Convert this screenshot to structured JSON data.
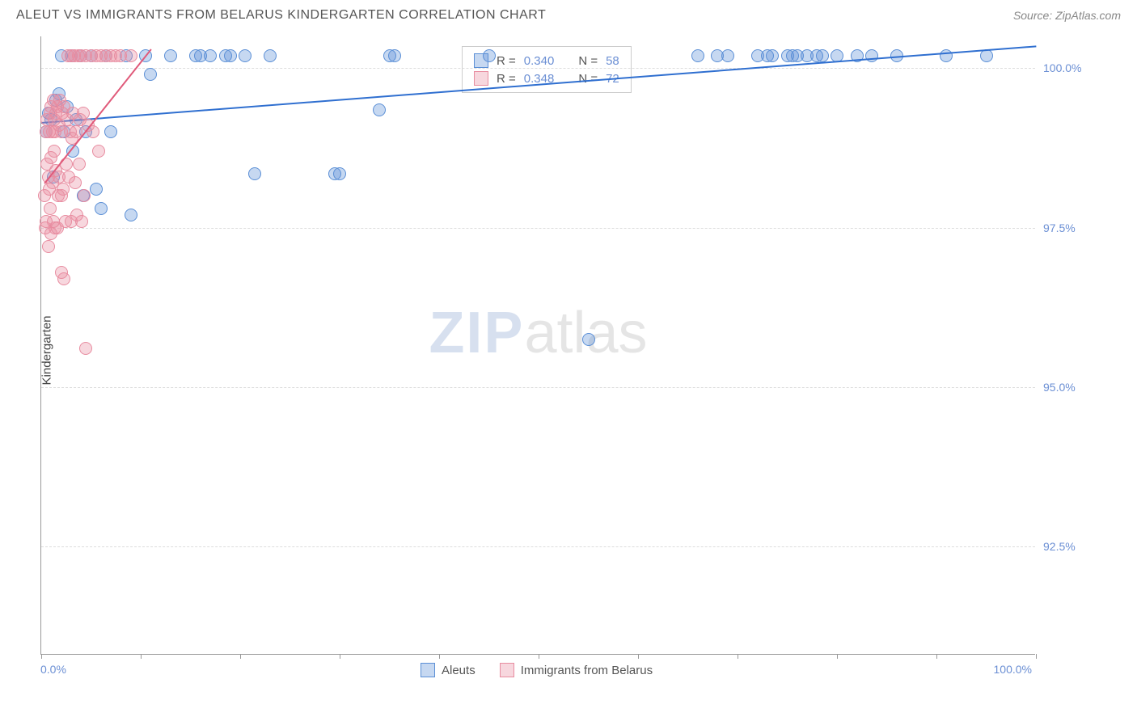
{
  "header": {
    "title": "ALEUT VS IMMIGRANTS FROM BELARUS KINDERGARTEN CORRELATION CHART",
    "source": "Source: ZipAtlas.com"
  },
  "watermark": {
    "zip": "ZIP",
    "atlas": "atlas"
  },
  "chart": {
    "type": "scatter",
    "background_color": "#ffffff",
    "grid_color": "#dddddd",
    "axis_color": "#999999",
    "label_color": "#6b8fd4",
    "y_axis_title": "Kindergarten",
    "xlim": [
      0,
      100
    ],
    "ylim": [
      90.8,
      100.5
    ],
    "y_ticks": [
      92.5,
      95.0,
      97.5,
      100.0
    ],
    "y_tick_labels": [
      "92.5%",
      "95.0%",
      "97.5%",
      "100.0%"
    ],
    "x_ticks": [
      0,
      10,
      20,
      30,
      40,
      50,
      60,
      70,
      80,
      90,
      100
    ],
    "x_label_min": "0.0%",
    "x_label_max": "100.0%",
    "marker_radius": 8,
    "marker_opacity": 0.5,
    "series": [
      {
        "name": "Aleuts",
        "color": "#5b8fd6",
        "fill": "rgba(91,143,214,0.35)",
        "stroke": "#5b8fd6",
        "R": "0.340",
        "N": "58",
        "trend": {
          "x1": 0,
          "y1": 99.15,
          "x2": 100,
          "y2": 100.35,
          "color": "#2f6fd0",
          "width": 2
        },
        "points": [
          [
            0.5,
            99.0
          ],
          [
            0.7,
            99.3
          ],
          [
            1.0,
            99.2
          ],
          [
            1.2,
            98.3
          ],
          [
            1.5,
            99.5
          ],
          [
            1.8,
            99.6
          ],
          [
            2.0,
            100.2
          ],
          [
            2.3,
            99.0
          ],
          [
            2.6,
            99.4
          ],
          [
            3.0,
            100.2
          ],
          [
            3.2,
            98.7
          ],
          [
            3.5,
            99.2
          ],
          [
            4.0,
            100.2
          ],
          [
            4.2,
            98.0
          ],
          [
            4.5,
            99.0
          ],
          [
            5.0,
            100.2
          ],
          [
            5.5,
            98.1
          ],
          [
            6.0,
            97.8
          ],
          [
            6.5,
            100.2
          ],
          [
            7.0,
            99.0
          ],
          [
            8.5,
            100.2
          ],
          [
            9.0,
            97.7
          ],
          [
            10.5,
            100.2
          ],
          [
            11.0,
            99.9
          ],
          [
            13.0,
            100.2
          ],
          [
            15.5,
            100.2
          ],
          [
            16.0,
            100.2
          ],
          [
            17.0,
            100.2
          ],
          [
            18.5,
            100.2
          ],
          [
            19.0,
            100.2
          ],
          [
            20.5,
            100.2
          ],
          [
            21.5,
            98.35
          ],
          [
            23.0,
            100.2
          ],
          [
            29.5,
            98.35
          ],
          [
            30.0,
            98.35
          ],
          [
            34.0,
            99.35
          ],
          [
            35.0,
            100.2
          ],
          [
            35.5,
            100.2
          ],
          [
            45.0,
            100.2
          ],
          [
            55.0,
            95.75
          ],
          [
            66.0,
            100.2
          ],
          [
            68.0,
            100.2
          ],
          [
            69.0,
            100.2
          ],
          [
            72.0,
            100.2
          ],
          [
            73.0,
            100.2
          ],
          [
            73.5,
            100.2
          ],
          [
            75.0,
            100.2
          ],
          [
            75.5,
            100.2
          ],
          [
            76.0,
            100.2
          ],
          [
            77.0,
            100.2
          ],
          [
            78.0,
            100.2
          ],
          [
            78.5,
            100.2
          ],
          [
            80.0,
            100.2
          ],
          [
            82.0,
            100.2
          ],
          [
            83.5,
            100.2
          ],
          [
            86.0,
            100.2
          ],
          [
            91.0,
            100.2
          ],
          [
            95.0,
            100.2
          ]
        ]
      },
      {
        "name": "Immigrants from Belarus",
        "color": "#e88ca0",
        "fill": "rgba(232,140,160,0.35)",
        "stroke": "#e88ca0",
        "R": "0.348",
        "N": "72",
        "trend": {
          "x1": 0.3,
          "y1": 98.2,
          "x2": 11,
          "y2": 100.3,
          "color": "#e05a7a",
          "width": 2
        },
        "points": [
          [
            0.3,
            98.0
          ],
          [
            0.4,
            97.5
          ],
          [
            0.5,
            99.0
          ],
          [
            0.5,
            97.6
          ],
          [
            0.6,
            98.5
          ],
          [
            0.6,
            99.2
          ],
          [
            0.7,
            98.3
          ],
          [
            0.7,
            97.2
          ],
          [
            0.8,
            99.0
          ],
          [
            0.8,
            98.1
          ],
          [
            0.9,
            99.3
          ],
          [
            0.9,
            97.8
          ],
          [
            1.0,
            99.4
          ],
          [
            1.0,
            98.6
          ],
          [
            1.0,
            97.4
          ],
          [
            1.1,
            99.0
          ],
          [
            1.1,
            98.2
          ],
          [
            1.2,
            99.5
          ],
          [
            1.2,
            97.6
          ],
          [
            1.3,
            99.2
          ],
          [
            1.3,
            98.7
          ],
          [
            1.4,
            99.0
          ],
          [
            1.4,
            97.5
          ],
          [
            1.5,
            99.3
          ],
          [
            1.5,
            98.4
          ],
          [
            1.6,
            99.4
          ],
          [
            1.6,
            97.5
          ],
          [
            1.7,
            98.0
          ],
          [
            1.8,
            99.1
          ],
          [
            1.8,
            98.3
          ],
          [
            1.9,
            99.5
          ],
          [
            2.0,
            98.0
          ],
          [
            2.0,
            99.0
          ],
          [
            2.1,
            99.3
          ],
          [
            2.2,
            98.1
          ],
          [
            2.3,
            99.4
          ],
          [
            2.4,
            97.6
          ],
          [
            2.5,
            98.5
          ],
          [
            2.6,
            99.2
          ],
          [
            2.7,
            100.2
          ],
          [
            2.8,
            98.3
          ],
          [
            2.9,
            99.0
          ],
          [
            3.0,
            100.2
          ],
          [
            3.0,
            97.6
          ],
          [
            3.1,
            98.9
          ],
          [
            3.2,
            99.3
          ],
          [
            3.3,
            100.2
          ],
          [
            3.4,
            98.2
          ],
          [
            3.5,
            99.0
          ],
          [
            3.6,
            97.7
          ],
          [
            3.7,
            100.2
          ],
          [
            3.8,
            98.5
          ],
          [
            3.9,
            99.2
          ],
          [
            4.0,
            100.2
          ],
          [
            4.1,
            97.6
          ],
          [
            4.2,
            99.3
          ],
          [
            4.3,
            98.0
          ],
          [
            4.5,
            100.2
          ],
          [
            4.7,
            99.1
          ],
          [
            5.0,
            100.2
          ],
          [
            5.2,
            99.0
          ],
          [
            5.5,
            100.2
          ],
          [
            5.8,
            98.7
          ],
          [
            6.0,
            100.2
          ],
          [
            6.5,
            100.2
          ],
          [
            7.0,
            100.2
          ],
          [
            7.5,
            100.2
          ],
          [
            8.0,
            100.2
          ],
          [
            9.0,
            100.2
          ],
          [
            2.0,
            96.8
          ],
          [
            2.3,
            96.7
          ],
          [
            4.5,
            95.6
          ]
        ]
      }
    ]
  },
  "stats_labels": {
    "R": "R =",
    "N": "N ="
  },
  "legend": {
    "items": [
      {
        "label": "Aleuts",
        "fill_key": 0
      },
      {
        "label": "Immigrants from Belarus",
        "fill_key": 1
      }
    ]
  }
}
